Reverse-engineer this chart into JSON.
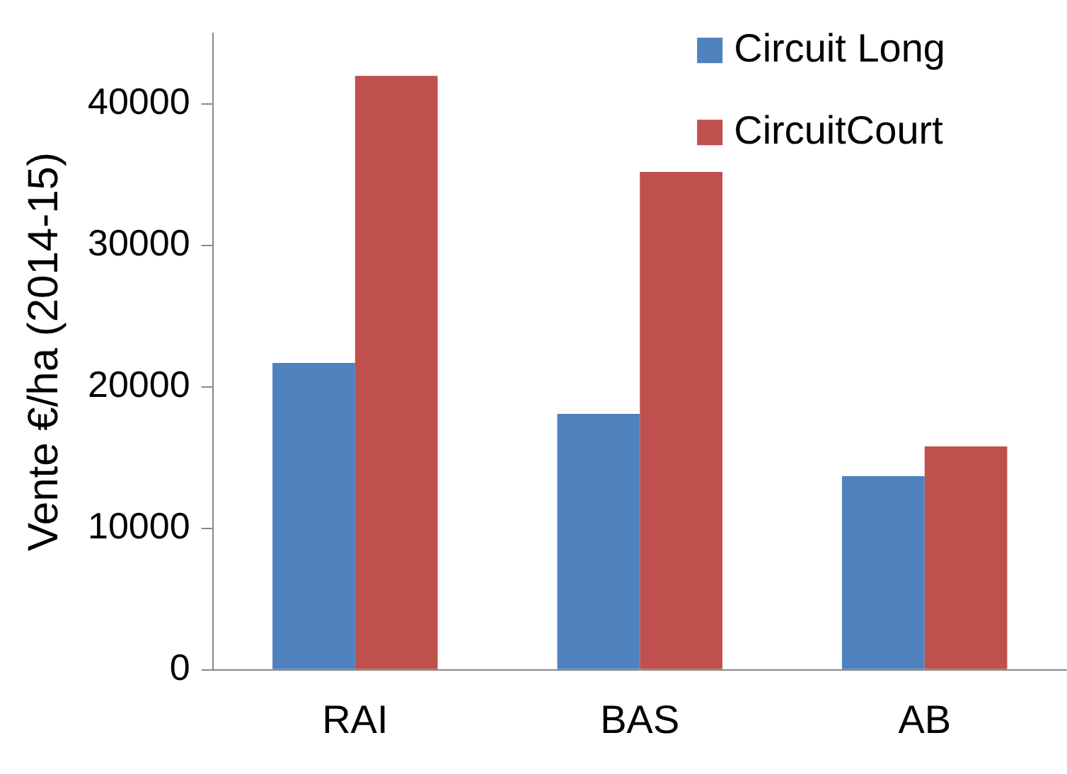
{
  "chart_data": {
    "type": "bar",
    "ylabel": "Vente €/ha (2014-15)",
    "categories": [
      "RAI",
      "BAS",
      "AB"
    ],
    "series": [
      {
        "name": "Circuit Long",
        "color": "#4f81bd",
        "values": [
          21700,
          18100,
          13700
        ]
      },
      {
        "name": "CircuitCourt",
        "color": "#c0504d",
        "values": [
          42000,
          35200,
          15800
        ]
      }
    ],
    "ylim": [
      0,
      45000
    ],
    "yticks": [
      0,
      10000,
      20000,
      30000,
      40000
    ],
    "grid": false,
    "legend": "top right"
  }
}
